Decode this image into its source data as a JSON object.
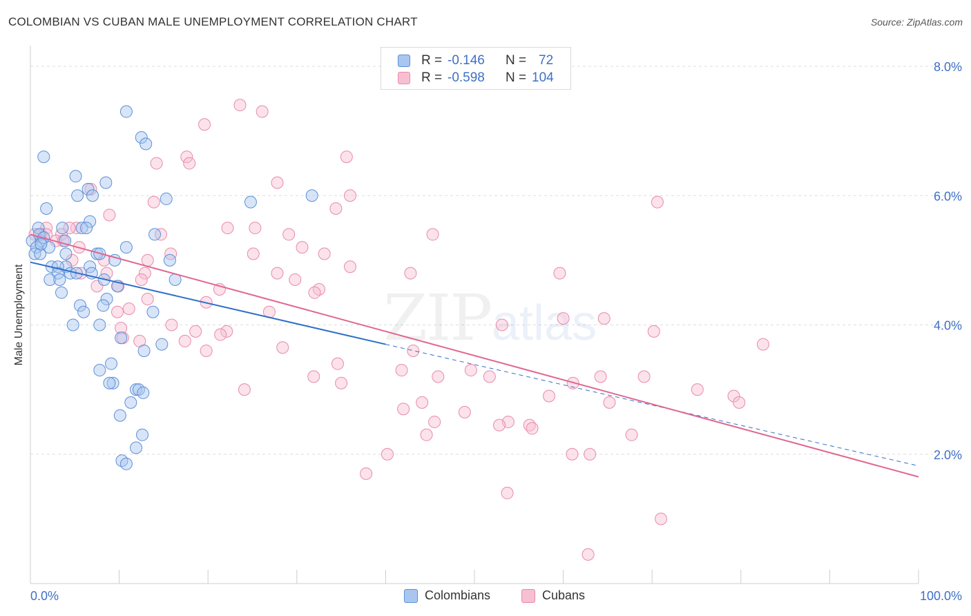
{
  "header": {
    "title": "COLOMBIAN VS CUBAN MALE UNEMPLOYMENT CORRELATION CHART",
    "source": "Source: ZipAtlas.com"
  },
  "legend": {
    "colombians": {
      "r_label": "R =",
      "r_value": "-0.146",
      "n_label": "N =",
      "n_value": "72"
    },
    "cubans": {
      "r_label": "R =",
      "r_value": "-0.598",
      "n_label": "N =",
      "n_value": "104"
    }
  },
  "colors": {
    "colombians_fill": "#a9c6f0",
    "colombians_stroke": "#5b8fd6",
    "colombians_line": "#2f6fcb",
    "cubans_fill": "#f7bfd2",
    "cubans_stroke": "#e88aaa",
    "cubans_line": "#e0668f",
    "grid": "#dddddd",
    "tick_label": "#3f6fc6"
  },
  "chart_data": {
    "type": "scatter",
    "title": "COLOMBIAN VS CUBAN MALE UNEMPLOYMENT CORRELATION CHART",
    "xlabel": "",
    "ylabel": "Male Unemployment",
    "xlim": [
      0,
      100
    ],
    "ylim": [
      0,
      8
    ],
    "x_tick_labels": [
      "0.0%",
      "100.0%"
    ],
    "y_tick_labels": [
      "2.0%",
      "4.0%",
      "6.0%",
      "8.0%"
    ],
    "y_ticks": [
      2,
      4,
      6,
      8
    ],
    "watermark": {
      "zip": "ZIP",
      "atlas": "atlas"
    },
    "series": [
      {
        "name": "Colombians",
        "trend": {
          "x": [
            0,
            40
          ],
          "y": [
            4.97,
            3.7
          ]
        },
        "trend_extended": {
          "x": [
            40,
            100
          ],
          "y": [
            3.7,
            1.82
          ]
        },
        "points": [
          [
            1.5,
            6.6
          ],
          [
            5.1,
            6.3
          ],
          [
            10.8,
            7.3
          ],
          [
            12.5,
            6.9
          ],
          [
            13,
            6.8
          ],
          [
            8.5,
            6.2
          ],
          [
            6.5,
            6.1
          ],
          [
            5.3,
            6
          ],
          [
            7,
            6
          ],
          [
            15.3,
            5.95
          ],
          [
            24.8,
            5.9
          ],
          [
            31.7,
            6
          ],
          [
            1.8,
            5.8
          ],
          [
            6.7,
            5.6
          ],
          [
            5.8,
            5.5
          ],
          [
            6.3,
            5.5
          ],
          [
            0.9,
            5.5
          ],
          [
            3.6,
            5.5
          ],
          [
            14,
            5.4
          ],
          [
            0.2,
            5.3
          ],
          [
            1.2,
            5.3
          ],
          [
            0.7,
            5.2
          ],
          [
            3.9,
            5.3
          ],
          [
            2.1,
            5.2
          ],
          [
            10.8,
            5.2
          ],
          [
            0.5,
            5.1
          ],
          [
            1.1,
            5.1
          ],
          [
            4,
            5.1
          ],
          [
            7.5,
            5.1
          ],
          [
            7.8,
            5.1
          ],
          [
            15.7,
            5
          ],
          [
            9.5,
            5
          ],
          [
            4,
            4.9
          ],
          [
            2.4,
            4.9
          ],
          [
            3.1,
            4.9
          ],
          [
            6.7,
            4.9
          ],
          [
            3.1,
            4.8
          ],
          [
            4.5,
            4.8
          ],
          [
            5.2,
            4.8
          ],
          [
            6.9,
            4.8
          ],
          [
            2.2,
            4.7
          ],
          [
            3.3,
            4.7
          ],
          [
            8.3,
            4.7
          ],
          [
            16.3,
            4.7
          ],
          [
            9.8,
            4.6
          ],
          [
            3.5,
            4.5
          ],
          [
            8.6,
            4.4
          ],
          [
            8.2,
            4.3
          ],
          [
            5.6,
            4.3
          ],
          [
            13.8,
            4.2
          ],
          [
            6,
            4.2
          ],
          [
            4.8,
            4
          ],
          [
            7.8,
            4
          ],
          [
            10.2,
            3.8
          ],
          [
            14.8,
            3.7
          ],
          [
            12.8,
            3.6
          ],
          [
            9.1,
            3.4
          ],
          [
            7.8,
            3.3
          ],
          [
            9.3,
            3.1
          ],
          [
            8.9,
            3.1
          ],
          [
            11.9,
            3
          ],
          [
            12.2,
            3
          ],
          [
            12.7,
            2.95
          ],
          [
            11.3,
            2.8
          ],
          [
            10.1,
            2.6
          ],
          [
            12.6,
            2.3
          ],
          [
            11.9,
            2.1
          ],
          [
            10.3,
            1.9
          ],
          [
            10.8,
            1.85
          ],
          [
            1,
            5.4
          ],
          [
            1.5,
            5.35
          ],
          [
            1.2,
            5.25
          ]
        ]
      },
      {
        "name": "Cubans",
        "trend": {
          "x": [
            0,
            100
          ],
          "y": [
            5.4,
            1.65
          ]
        },
        "points": [
          [
            23.6,
            7.4
          ],
          [
            26.1,
            7.3
          ],
          [
            19.6,
            7.1
          ],
          [
            35.6,
            6.6
          ],
          [
            17.6,
            6.6
          ],
          [
            17.9,
            6.5
          ],
          [
            14.2,
            6.5
          ],
          [
            27.8,
            6.2
          ],
          [
            6.8,
            6.1
          ],
          [
            36,
            6
          ],
          [
            13.9,
            5.9
          ],
          [
            70.6,
            5.9
          ],
          [
            34.4,
            5.8
          ],
          [
            8.9,
            5.7
          ],
          [
            1.8,
            5.5
          ],
          [
            5.2,
            5.5
          ],
          [
            25.3,
            5.5
          ],
          [
            3.5,
            5.4
          ],
          [
            4.4,
            5.5
          ],
          [
            22.2,
            5.5
          ],
          [
            14.7,
            5.4
          ],
          [
            29.1,
            5.4
          ],
          [
            45.3,
            5.4
          ],
          [
            1.2,
            5.4
          ],
          [
            2.9,
            5.3
          ],
          [
            0.5,
            5.4
          ],
          [
            3.7,
            5.3
          ],
          [
            1.8,
            5.4
          ],
          [
            5.5,
            5.2
          ],
          [
            30.6,
            5.2
          ],
          [
            33.1,
            5.1
          ],
          [
            25.1,
            5.1
          ],
          [
            15.8,
            5.1
          ],
          [
            8.3,
            5
          ],
          [
            4.7,
            5
          ],
          [
            13.2,
            5
          ],
          [
            36,
            4.9
          ],
          [
            42.8,
            4.8
          ],
          [
            27.8,
            4.8
          ],
          [
            59.6,
            4.8
          ],
          [
            5.7,
            4.8
          ],
          [
            8.6,
            4.8
          ],
          [
            12.9,
            4.8
          ],
          [
            29.8,
            4.7
          ],
          [
            12.5,
            4.7
          ],
          [
            9.9,
            4.6
          ],
          [
            7.5,
            4.6
          ],
          [
            21.3,
            4.55
          ],
          [
            32.5,
            4.55
          ],
          [
            32,
            4.5
          ],
          [
            13.2,
            4.4
          ],
          [
            19.8,
            4.35
          ],
          [
            11.1,
            4.25
          ],
          [
            9.8,
            4.2
          ],
          [
            26.9,
            4.2
          ],
          [
            60,
            4.1
          ],
          [
            64.6,
            4.1
          ],
          [
            53.1,
            4
          ],
          [
            15.9,
            4
          ],
          [
            10.2,
            3.95
          ],
          [
            22.1,
            3.9
          ],
          [
            18.6,
            3.9
          ],
          [
            70.2,
            3.9
          ],
          [
            21.4,
            3.85
          ],
          [
            10.4,
            3.8
          ],
          [
            12.3,
            3.75
          ],
          [
            17.4,
            3.75
          ],
          [
            82.5,
            3.7
          ],
          [
            28.4,
            3.65
          ],
          [
            19.8,
            3.6
          ],
          [
            43.1,
            3.6
          ],
          [
            34.6,
            3.4
          ],
          [
            41.8,
            3.3
          ],
          [
            49.6,
            3.3
          ],
          [
            31.9,
            3.2
          ],
          [
            45.9,
            3.2
          ],
          [
            51.7,
            3.2
          ],
          [
            64.2,
            3.2
          ],
          [
            69.1,
            3.2
          ],
          [
            61.1,
            3.1
          ],
          [
            35,
            3.1
          ],
          [
            24.1,
            3
          ],
          [
            75.1,
            3
          ],
          [
            58.4,
            2.9
          ],
          [
            79.2,
            2.9
          ],
          [
            79.8,
            2.8
          ],
          [
            65.2,
            2.8
          ],
          [
            44.1,
            2.8
          ],
          [
            42,
            2.7
          ],
          [
            48.9,
            2.65
          ],
          [
            45.5,
            2.5
          ],
          [
            53.8,
            2.5
          ],
          [
            52.8,
            2.45
          ],
          [
            56.2,
            2.45
          ],
          [
            44.6,
            2.3
          ],
          [
            67.7,
            2.3
          ],
          [
            40.2,
            2
          ],
          [
            61,
            2
          ],
          [
            63,
            2
          ],
          [
            37.8,
            1.7
          ],
          [
            53.7,
            1.4
          ],
          [
            71,
            1
          ],
          [
            62.8,
            0.45
          ],
          [
            56.5,
            2.4
          ]
        ]
      }
    ]
  }
}
